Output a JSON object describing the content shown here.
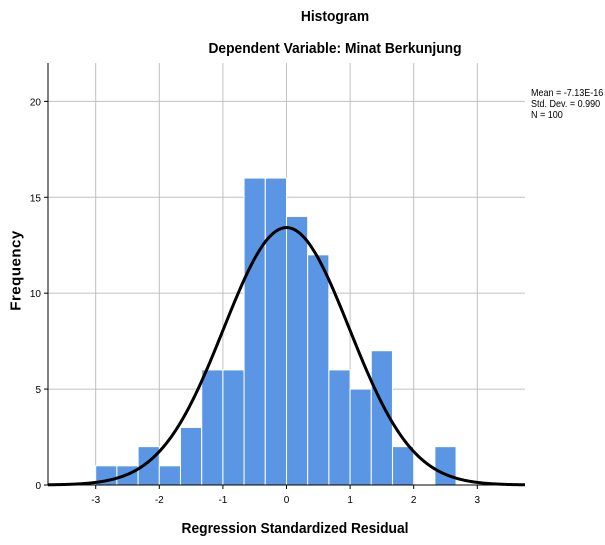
{
  "chart_data": {
    "type": "bar",
    "title": "Histogram",
    "subtitle": "Dependent Variable: Minat Berkunjung",
    "xlabel": "Regression Standardized Residual",
    "ylabel": "Frequency",
    "xlim": [
      -3.75,
      3.75
    ],
    "ylim": [
      0,
      22
    ],
    "xticks": [
      -3,
      -2,
      -1,
      0,
      1,
      2,
      3
    ],
    "xtick_labels": [
      "-3",
      "-2",
      "-1",
      "0",
      "1",
      "2",
      "3"
    ],
    "yticks": [
      0,
      5,
      10,
      15,
      20
    ],
    "ytick_labels": [
      "0",
      "5",
      "10",
      "15",
      "20"
    ],
    "grid": true,
    "bin_width": 0.333,
    "bins": [
      {
        "x0": -3.0,
        "value": 1
      },
      {
        "x0": -2.667,
        "value": 1
      },
      {
        "x0": -2.333,
        "value": 2
      },
      {
        "x0": -2.0,
        "value": 1
      },
      {
        "x0": -1.667,
        "value": 3
      },
      {
        "x0": -1.333,
        "value": 6
      },
      {
        "x0": -1.0,
        "value": 6
      },
      {
        "x0": -0.667,
        "value": 16
      },
      {
        "x0": -0.333,
        "value": 16
      },
      {
        "x0": 0.0,
        "value": 14
      },
      {
        "x0": 0.333,
        "value": 12
      },
      {
        "x0": 0.667,
        "value": 6
      },
      {
        "x0": 1.0,
        "value": 5
      },
      {
        "x0": 1.333,
        "value": 7
      },
      {
        "x0": 1.667,
        "value": 2
      },
      {
        "x0": 2.0,
        "value": 0
      },
      {
        "x0": 2.333,
        "value": 2
      }
    ],
    "normal_curve": {
      "mean": 0,
      "sd": 0.99,
      "n": 100
    },
    "stats": {
      "mean": "Mean = -7.13E-16",
      "std_dev": "Std. Dev. = 0.990",
      "n": "N = 100"
    },
    "colors": {
      "bar": "#5b96e4",
      "bar_edge": "#ffffff",
      "curve": "#000000",
      "grid": "#c0c0c0"
    }
  }
}
